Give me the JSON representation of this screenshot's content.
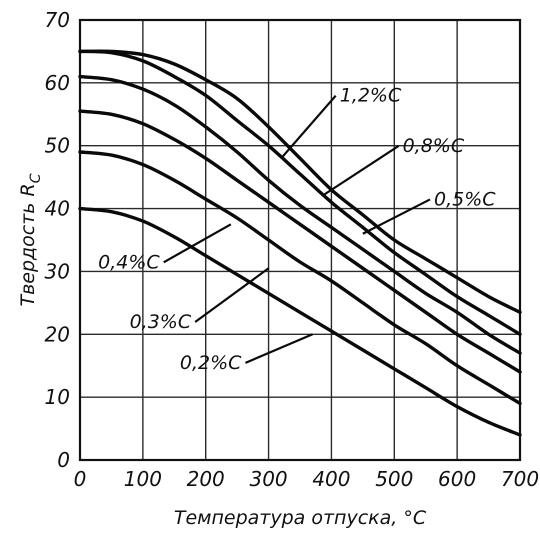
{
  "chart_data": {
    "type": "line",
    "xlabel": "Температура отпуска, °C",
    "ylabel": "Твердость R",
    "ylabel_sub": "C",
    "xlim": [
      0,
      700
    ],
    "ylim": [
      0,
      70
    ],
    "xticks": [
      "0",
      "100",
      "200",
      "300",
      "400",
      "500",
      "600",
      "700"
    ],
    "yticks": [
      "0",
      "10",
      "20",
      "30",
      "40",
      "50",
      "60",
      "70"
    ],
    "grid": true,
    "series": [
      {
        "name": "1,2%C",
        "x": [
          0,
          50,
          100,
          150,
          200,
          250,
          300,
          350,
          400,
          450,
          500,
          550,
          600,
          650,
          700
        ],
        "y": [
          65,
          65,
          64.5,
          63,
          60.5,
          57.5,
          53,
          48,
          43,
          39,
          35,
          32,
          29,
          26,
          23.5
        ]
      },
      {
        "name": "0,8%C",
        "x": [
          0,
          50,
          100,
          150,
          200,
          250,
          300,
          350,
          400,
          450,
          500,
          550,
          600,
          650,
          700
        ],
        "y": [
          65,
          64.8,
          63.5,
          61,
          58,
          54,
          50,
          45.5,
          41,
          37,
          33,
          29.5,
          26,
          23,
          20
        ]
      },
      {
        "name": "0,5%C",
        "x": [
          0,
          50,
          100,
          150,
          200,
          250,
          300,
          350,
          400,
          450,
          500,
          550,
          600,
          650,
          700
        ],
        "y": [
          61,
          60.5,
          59,
          56.5,
          53,
          49,
          44.5,
          40.5,
          37,
          33.5,
          30,
          26.5,
          23.5,
          20,
          17
        ]
      },
      {
        "name": "0,4%C",
        "x": [
          0,
          50,
          100,
          150,
          200,
          250,
          300,
          350,
          400,
          450,
          500,
          550,
          600,
          650,
          700
        ],
        "y": [
          55.5,
          55,
          53.5,
          51,
          48,
          44.5,
          41,
          37.5,
          34,
          30.5,
          27,
          23.5,
          20,
          17,
          14
        ]
      },
      {
        "name": "0,3%C",
        "x": [
          0,
          50,
          100,
          150,
          200,
          250,
          300,
          350,
          400,
          450,
          500,
          550,
          600,
          650,
          700
        ],
        "y": [
          49,
          48.5,
          47,
          44.5,
          41.5,
          38.5,
          35,
          31.5,
          28.5,
          25,
          21.5,
          18.5,
          15,
          12,
          9
        ]
      },
      {
        "name": "0,2%C",
        "x": [
          0,
          50,
          100,
          150,
          200,
          250,
          300,
          350,
          400,
          450,
          500,
          550,
          600,
          650,
          700
        ],
        "y": [
          40,
          39.5,
          38,
          35.5,
          32.5,
          29.5,
          26.5,
          23.5,
          20.5,
          17.5,
          14.5,
          11.5,
          8.5,
          6,
          4
        ]
      }
    ],
    "labels": [
      {
        "series": "1,2%C",
        "text": "1,2%C",
        "at": [
          410,
          57
        ],
        "to": [
          320,
          48
        ]
      },
      {
        "series": "0,8%C",
        "text": "0,8%C",
        "at": [
          510,
          49
        ],
        "to": [
          385,
          42
        ]
      },
      {
        "series": "0,5%C",
        "text": "0,5%C",
        "at": [
          560,
          40.5
        ],
        "to": [
          450,
          36
        ]
      },
      {
        "series": "0,4%C",
        "text": "0,4%C",
        "at": [
          130,
          30.5
        ],
        "to": [
          240,
          37.5
        ]
      },
      {
        "series": "0,3%C",
        "text": "0,3%C",
        "at": [
          180,
          21
        ],
        "to": [
          300,
          30.5
        ]
      },
      {
        "series": "0,2%C",
        "text": "0,2%C",
        "at": [
          260,
          14.5
        ],
        "to": [
          370,
          20
        ]
      }
    ]
  }
}
